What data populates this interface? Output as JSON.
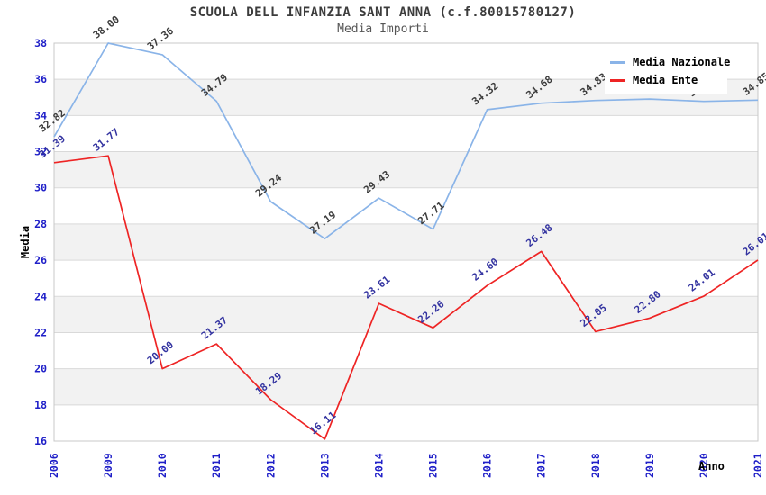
{
  "chart_data": {
    "type": "line",
    "title": "SCUOLA DELL INFANZIA SANT ANNA (c.f.80015780127)",
    "subtitle": "Media Importi",
    "xlabel": "Anno",
    "ylabel": "Media",
    "categories": [
      "2006",
      "2009",
      "2010",
      "2011",
      "2012",
      "2013",
      "2014",
      "2015",
      "2016",
      "2017",
      "2018",
      "2019",
      "2020",
      "2021"
    ],
    "series": [
      {
        "name": "Media Nazionale",
        "color": "#8ab4e8",
        "label_color": "#3c3c3c",
        "values": [
          32.82,
          38.0,
          37.36,
          34.79,
          29.24,
          27.19,
          29.43,
          27.71,
          34.32,
          34.68,
          34.83,
          34.91,
          34.78,
          34.85
        ]
      },
      {
        "name": "Media Ente",
        "color": "#ee2424",
        "label_color": "#3333a0",
        "values": [
          31.39,
          31.77,
          20.0,
          21.37,
          18.29,
          16.11,
          23.61,
          22.26,
          24.6,
          26.48,
          22.05,
          22.8,
          24.01,
          26.01
        ]
      }
    ],
    "ylim": [
      16,
      38
    ],
    "ytick_step": 2,
    "yticks": [
      16,
      18,
      20,
      22,
      24,
      26,
      28,
      30,
      32,
      34,
      36,
      38
    ],
    "tick_label_color": "#1f1fc8",
    "band_color": "#f2f2f2",
    "gridline_color": "#d9d9d9",
    "plot_border_color": "#c8c8c8",
    "grid": "horizontal gridlines with alternating gray bands",
    "legend_position": "top-right",
    "point_label_format": "2 decimals, rotated"
  }
}
